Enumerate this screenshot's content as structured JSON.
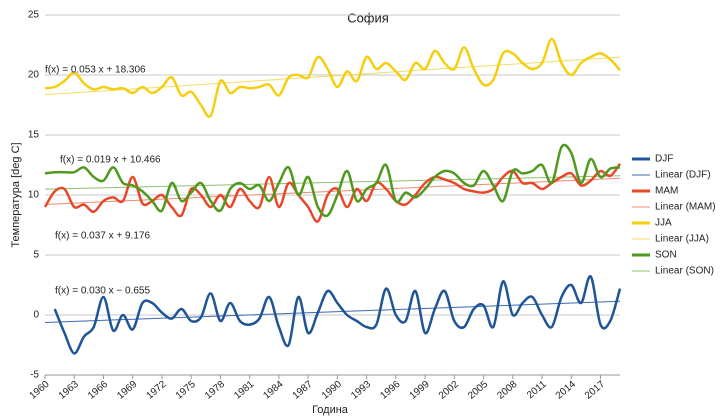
{
  "chart_data": {
    "type": "line",
    "title": "София",
    "xlabel": "Година",
    "ylabel": "Температура [deg C]",
    "x": [
      1960,
      1961,
      1962,
      1963,
      1964,
      1965,
      1966,
      1967,
      1968,
      1969,
      1970,
      1971,
      1972,
      1973,
      1974,
      1975,
      1976,
      1977,
      1978,
      1979,
      1980,
      1981,
      1982,
      1983,
      1984,
      1985,
      1986,
      1987,
      1988,
      1989,
      1990,
      1991,
      1992,
      1993,
      1994,
      1995,
      1996,
      1997,
      1998,
      1999,
      2000,
      2001,
      2002,
      2003,
      2004,
      2005,
      2006,
      2007,
      2008,
      2009,
      2010,
      2011,
      2012,
      2013,
      2014,
      2015,
      2016,
      2017,
      2018,
      2019
    ],
    "series": [
      {
        "name": "DJF",
        "color": "#1f5597",
        "values": [
          null,
          0.5,
          -1.5,
          -3.2,
          -1.8,
          -1.0,
          1.5,
          -1.3,
          0.0,
          -1.2,
          1.0,
          1.0,
          0.2,
          -0.3,
          0.5,
          -0.5,
          -0.2,
          1.8,
          -0.5,
          1.0,
          -0.5,
          -0.8,
          -0.3,
          1.5,
          -1.0,
          -2.5,
          1.5,
          -1.5,
          0.2,
          2.0,
          1.0,
          0.0,
          -0.5,
          -1.0,
          -0.8,
          2.2,
          0.0,
          -0.5,
          2.0,
          -1.5,
          0.5,
          2.0,
          -0.5,
          -1.0,
          0.5,
          0.8,
          -1.0,
          2.8,
          0.0,
          1.0,
          1.5,
          0.0,
          -1.0,
          1.5,
          2.5,
          1.0,
          3.2,
          -0.8,
          -0.5,
          2.2
        ]
      },
      {
        "name": "MAM",
        "color": "#e8482a",
        "values": [
          9.0,
          10.3,
          10.5,
          9.0,
          9.2,
          8.6,
          9.5,
          9.8,
          9.5,
          11.5,
          9.3,
          9.5,
          10.0,
          9.0,
          8.3,
          10.5,
          10.0,
          9.0,
          10.0,
          9.0,
          10.5,
          9.5,
          9.0,
          11.5,
          9.0,
          11.0,
          10.0,
          9.0,
          7.8,
          10.0,
          10.5,
          9.0,
          10.5,
          9.5,
          11.0,
          10.5,
          9.5,
          9.2,
          10.0,
          11.0,
          11.5,
          11.3,
          11.0,
          10.5,
          10.3,
          10.2,
          10.5,
          11.5,
          12.0,
          11.0,
          11.0,
          10.5,
          11.0,
          11.5,
          11.8,
          10.8,
          11.2,
          12.0,
          11.6,
          12.6
        ]
      },
      {
        "name": "JJA",
        "color": "#f5cf0f",
        "values": [
          18.9,
          19.0,
          19.5,
          20.2,
          19.3,
          18.8,
          19.0,
          18.8,
          18.9,
          18.5,
          19.0,
          18.5,
          19.0,
          19.8,
          18.3,
          18.6,
          17.5,
          16.6,
          19.5,
          18.5,
          19.0,
          18.9,
          19.0,
          19.2,
          18.3,
          19.8,
          20.0,
          19.8,
          21.5,
          20.5,
          19.0,
          20.3,
          19.5,
          21.5,
          20.5,
          21.0,
          20.3,
          19.6,
          21.0,
          20.5,
          22.0,
          21.0,
          20.5,
          22.3,
          20.5,
          19.2,
          19.6,
          21.8,
          21.8,
          21.0,
          20.5,
          21.0,
          23.0,
          21.0,
          20.0,
          21.0,
          21.5,
          21.8,
          21.3,
          20.4
        ]
      },
      {
        "name": "SON",
        "color": "#4f9a1e",
        "values": [
          11.8,
          11.9,
          11.9,
          11.9,
          12.3,
          11.5,
          11.2,
          12.3,
          11.0,
          10.8,
          10.3,
          9.5,
          8.7,
          11.0,
          9.5,
          10.2,
          11.0,
          9.5,
          8.7,
          10.5,
          11.0,
          10.5,
          10.8,
          9.5,
          11.0,
          12.3,
          10.0,
          11.5,
          9.0,
          8.3,
          10.0,
          12.0,
          9.5,
          10.5,
          11.0,
          12.5,
          9.5,
          10.2,
          9.8,
          10.5,
          11.5,
          12.0,
          11.8,
          11.0,
          10.8,
          12.0,
          10.8,
          9.5,
          12.0,
          11.8,
          12.0,
          12.5,
          11.0,
          14.0,
          13.5,
          11.0,
          13.0,
          11.5,
          12.2,
          12.3
        ]
      }
    ],
    "trendlines": [
      {
        "name": "Linear (DJF)",
        "color": "#3a6bb0",
        "label": "f(x) = 0.030 x − 0.655",
        "x": [
          1960,
          2019
        ],
        "values": [
          -0.625,
          1.145
        ]
      },
      {
        "name": "Linear (MAM)",
        "color": "#f08a70",
        "label": "f(x) = 0.037 x + 9.176",
        "x": [
          1960,
          2019
        ],
        "values": [
          9.213,
          11.396
        ]
      },
      {
        "name": "Linear (JJA)",
        "color": "#f2dc6a",
        "label": "f(x) = 0.053 x + 18.306",
        "x": [
          1960,
          2019
        ],
        "values": [
          18.359,
          21.486
        ]
      },
      {
        "name": "Linear (SON)",
        "color": "#8fc070",
        "label": "f(x) = 0.019 x + 10.466",
        "x": [
          1960,
          2019
        ],
        "values": [
          10.485,
          11.606
        ]
      }
    ],
    "xlim": [
      1960,
      2019
    ],
    "xticks": [
      1960,
      1963,
      1966,
      1969,
      1972,
      1975,
      1978,
      1981,
      1984,
      1987,
      1990,
      1993,
      1996,
      1999,
      2002,
      2005,
      2008,
      2011,
      2014,
      2017
    ],
    "ylim": [
      -5,
      25
    ],
    "yticks": [
      -5,
      0,
      5,
      10,
      15,
      20,
      25
    ],
    "grid": true
  }
}
